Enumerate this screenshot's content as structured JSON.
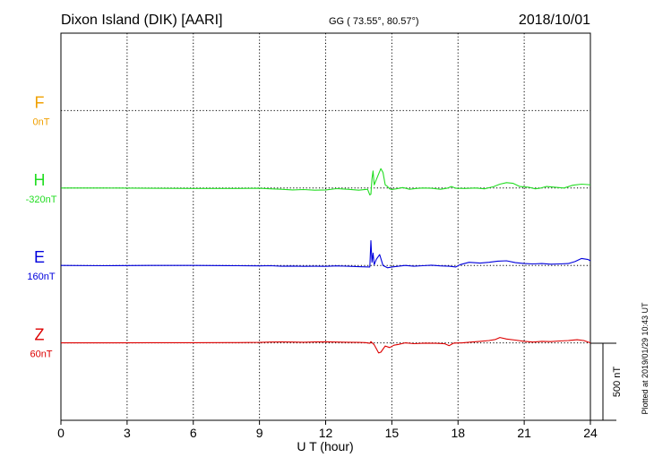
{
  "header": {
    "station": "Dixon Island (DIK)  [AARI]",
    "coords": "GG ( 73.55°,  80.57°)",
    "date": "2018/10/01"
  },
  "side_note": "Plotted at 2019/01/29 10:43 UT",
  "chart_data": {
    "type": "line",
    "xlabel": "U T (hour)",
    "xlim": [
      0,
      24
    ],
    "xticks": [
      "0",
      "3",
      "6",
      "9",
      "12",
      "15",
      "18",
      "21",
      "24"
    ],
    "scale_label": "500 nT",
    "series": [
      {
        "name": "F",
        "baseline": "0nT",
        "color": "#f0a000",
        "values": []
      },
      {
        "name": "H",
        "baseline": "-320nT",
        "color": "#22dd22",
        "values": [
          [
            0,
            0
          ],
          [
            2,
            0
          ],
          [
            4,
            -2
          ],
          [
            6,
            -3
          ],
          [
            8,
            -3
          ],
          [
            9,
            -2
          ],
          [
            9.5,
            -5
          ],
          [
            10,
            -8
          ],
          [
            10.5,
            -12
          ],
          [
            11,
            -10
          ],
          [
            11.5,
            -14
          ],
          [
            12,
            -12
          ],
          [
            12.5,
            -4
          ],
          [
            13,
            -8
          ],
          [
            13.5,
            -14
          ],
          [
            13.9,
            -8
          ],
          [
            14.0,
            -45
          ],
          [
            14.05,
            -40
          ],
          [
            14.1,
            60
          ],
          [
            14.15,
            110
          ],
          [
            14.2,
            20
          ],
          [
            14.3,
            55
          ],
          [
            14.4,
            90
          ],
          [
            14.5,
            125
          ],
          [
            14.6,
            100
          ],
          [
            14.7,
            20
          ],
          [
            14.8,
            10
          ],
          [
            14.9,
            -5
          ],
          [
            15.0,
            -10
          ],
          [
            15.2,
            -5
          ],
          [
            15.5,
            3
          ],
          [
            15.8,
            -8
          ],
          [
            16.1,
            -3
          ],
          [
            16.4,
            0
          ],
          [
            16.8,
            -2
          ],
          [
            17.2,
            -8
          ],
          [
            17.5,
            -2
          ],
          [
            17.7,
            10
          ],
          [
            17.9,
            -2
          ],
          [
            18.3,
            -3
          ],
          [
            18.8,
            0
          ],
          [
            19.2,
            -5
          ],
          [
            19.6,
            8
          ],
          [
            19.9,
            25
          ],
          [
            20.2,
            35
          ],
          [
            20.5,
            30
          ],
          [
            20.8,
            10
          ],
          [
            21.2,
            5
          ],
          [
            21.5,
            -5
          ],
          [
            21.7,
            -2
          ],
          [
            22.0,
            10
          ],
          [
            22.4,
            5
          ],
          [
            22.8,
            0
          ],
          [
            23.2,
            18
          ],
          [
            23.6,
            25
          ],
          [
            23.9,
            22
          ],
          [
            24,
            20
          ]
        ]
      },
      {
        "name": "E",
        "baseline": "160nT",
        "color": "#0000dd",
        "values": [
          [
            0,
            0
          ],
          [
            2,
            -2
          ],
          [
            4,
            0
          ],
          [
            6,
            0
          ],
          [
            8,
            -2
          ],
          [
            9,
            -3
          ],
          [
            9.5,
            -2
          ],
          [
            10,
            -5
          ],
          [
            10.5,
            -4
          ],
          [
            11,
            -6
          ],
          [
            11.5,
            -5
          ],
          [
            12,
            -6
          ],
          [
            12.5,
            -3
          ],
          [
            13,
            -5
          ],
          [
            13.5,
            -8
          ],
          [
            14.0,
            -10
          ],
          [
            14.05,
            160
          ],
          [
            14.1,
            20
          ],
          [
            14.15,
            80
          ],
          [
            14.2,
            5
          ],
          [
            14.3,
            40
          ],
          [
            14.45,
            70
          ],
          [
            14.6,
            0
          ],
          [
            14.8,
            -15
          ],
          [
            15.0,
            -10
          ],
          [
            15.3,
            -5
          ],
          [
            15.6,
            0
          ],
          [
            16.0,
            -5
          ],
          [
            16.4,
            -2
          ],
          [
            16.8,
            2
          ],
          [
            17.2,
            -3
          ],
          [
            17.6,
            -5
          ],
          [
            17.9,
            -10
          ],
          [
            18.1,
            5
          ],
          [
            18.5,
            20
          ],
          [
            19.0,
            15
          ],
          [
            19.4,
            20
          ],
          [
            19.8,
            28
          ],
          [
            20.2,
            30
          ],
          [
            20.6,
            18
          ],
          [
            21.0,
            12
          ],
          [
            21.4,
            10
          ],
          [
            21.8,
            12
          ],
          [
            22.2,
            8
          ],
          [
            22.6,
            10
          ],
          [
            23.0,
            12
          ],
          [
            23.3,
            25
          ],
          [
            23.6,
            45
          ],
          [
            23.9,
            38
          ],
          [
            24,
            30
          ]
        ]
      },
      {
        "name": "Z",
        "baseline": "60nT",
        "color": "#dd0000",
        "values": [
          [
            0,
            0
          ],
          [
            2,
            0
          ],
          [
            4,
            1
          ],
          [
            6,
            1
          ],
          [
            8,
            2
          ],
          [
            9,
            3
          ],
          [
            9.5,
            5
          ],
          [
            10,
            6
          ],
          [
            10.5,
            5
          ],
          [
            11,
            4
          ],
          [
            11.5,
            6
          ],
          [
            12,
            7
          ],
          [
            12.5,
            5
          ],
          [
            13,
            4
          ],
          [
            13.5,
            3
          ],
          [
            13.8,
            2
          ],
          [
            14.0,
            -3
          ],
          [
            14.05,
            8
          ],
          [
            14.2,
            -12
          ],
          [
            14.4,
            -65
          ],
          [
            14.5,
            -60
          ],
          [
            14.7,
            -20
          ],
          [
            14.9,
            -30
          ],
          [
            15.1,
            -15
          ],
          [
            15.3,
            -10
          ],
          [
            15.6,
            0
          ],
          [
            16.0,
            -5
          ],
          [
            16.5,
            -2
          ],
          [
            17.0,
            -3
          ],
          [
            17.4,
            -6
          ],
          [
            17.6,
            -18
          ],
          [
            17.8,
            -2
          ],
          [
            18.2,
            0
          ],
          [
            18.6,
            5
          ],
          [
            19.0,
            10
          ],
          [
            19.4,
            15
          ],
          [
            19.7,
            22
          ],
          [
            19.9,
            35
          ],
          [
            20.2,
            25
          ],
          [
            20.6,
            18
          ],
          [
            21.0,
            10
          ],
          [
            21.4,
            5
          ],
          [
            21.8,
            10
          ],
          [
            22.2,
            8
          ],
          [
            22.6,
            12
          ],
          [
            23.0,
            15
          ],
          [
            23.4,
            20
          ],
          [
            23.7,
            15
          ],
          [
            24,
            0
          ]
        ]
      }
    ]
  }
}
